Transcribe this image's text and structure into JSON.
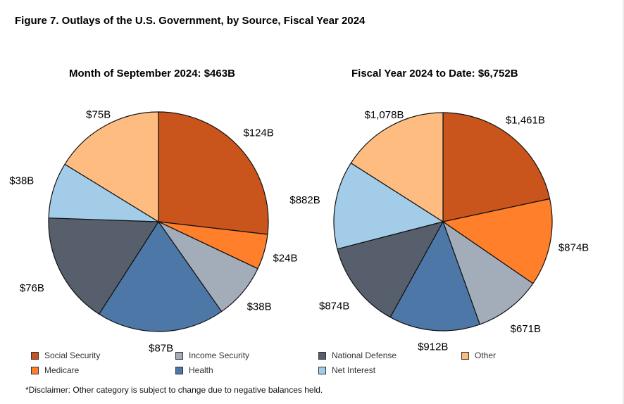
{
  "title": "Figure 7. Outlays of the U.S. Government, by Source, Fiscal Year 2024",
  "disclaimer": "*Disclaimer: Other category is subject to change due to negative balances held.",
  "legend": [
    {
      "label": "Social Security",
      "color": "#c9541c"
    },
    {
      "label": "Medicare",
      "color": "#ff7f2a"
    },
    {
      "label": "Income Security",
      "color": "#a3acb9"
    },
    {
      "label": "Health",
      "color": "#4c77a6"
    },
    {
      "label": "National Defense",
      "color": "#575f6d"
    },
    {
      "label": "Net Interest",
      "color": "#a2cce8"
    },
    {
      "label": "Other",
      "color": "#ffbc80"
    }
  ],
  "chart_data": [
    {
      "type": "pie",
      "title": "Month of September 2024: $463B",
      "categories": [
        "Social Security",
        "Medicare",
        "Income Security",
        "Health",
        "National Defense",
        "Net Interest",
        "Other"
      ],
      "values": [
        124,
        24,
        38,
        87,
        76,
        38,
        75
      ],
      "labels": [
        "$124B",
        "$24B",
        "$38B",
        "$87B",
        "$76B",
        "$38B",
        "$75B"
      ],
      "unit": "billions USD",
      "start_angle": "12 o'clock",
      "direction": "clockwise"
    },
    {
      "type": "pie",
      "title": "Fiscal Year 2024 to Date: $6,752B",
      "categories": [
        "Social Security",
        "Medicare",
        "Income Security",
        "Health",
        "National Defense",
        "Net Interest",
        "Other"
      ],
      "values": [
        1461,
        874,
        671,
        912,
        874,
        882,
        1078
      ],
      "labels": [
        "$1,461B",
        "$874B",
        "$671B",
        "$912B",
        "$874B",
        "$882B",
        "$1,078B"
      ],
      "unit": "billions USD",
      "start_angle": "12 o'clock",
      "direction": "clockwise"
    }
  ]
}
